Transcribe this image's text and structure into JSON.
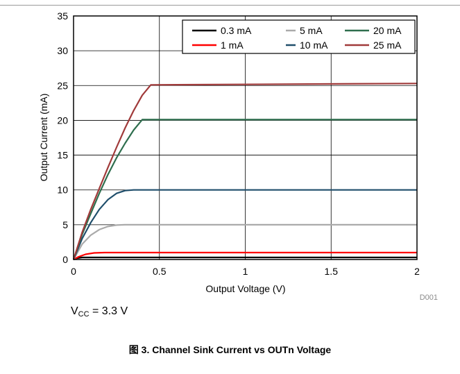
{
  "chart_data": {
    "type": "line",
    "xlabel": "Output Voltage (V)",
    "ylabel": "Output Current (mA)",
    "xlim": [
      0,
      2
    ],
    "ylim": [
      0,
      35
    ],
    "xticks": [
      "0",
      "0.5",
      "1",
      "1.5",
      "2"
    ],
    "yticks": [
      "0",
      "5",
      "10",
      "15",
      "20",
      "25",
      "30",
      "35"
    ],
    "grid": true,
    "legend_position": "top-right",
    "plot_id": "D001",
    "series": [
      {
        "name": "0.3 mA",
        "color": "#000000",
        "x": [
          0,
          0.02,
          0.05,
          0.1,
          2
        ],
        "y": [
          0,
          0.2,
          0.3,
          0.3,
          0.3
        ]
      },
      {
        "name": "1 mA",
        "color": "#ff0000",
        "x": [
          0,
          0.03,
          0.07,
          0.12,
          0.18,
          2
        ],
        "y": [
          0,
          0.4,
          0.75,
          0.95,
          1.0,
          1.0
        ]
      },
      {
        "name": "5 mA",
        "color": "#aaaaaa",
        "x": [
          0,
          0.05,
          0.1,
          0.15,
          0.2,
          0.25,
          0.3,
          2
        ],
        "y": [
          0,
          2.2,
          3.5,
          4.3,
          4.75,
          4.95,
          5.0,
          5.0
        ]
      },
      {
        "name": "10 mA",
        "color": "#1f4e6b",
        "x": [
          0,
          0.05,
          0.1,
          0.15,
          0.2,
          0.25,
          0.3,
          0.35,
          2
        ],
        "y": [
          0,
          3.0,
          5.3,
          7.2,
          8.6,
          9.5,
          9.9,
          10.0,
          10.0
        ]
      },
      {
        "name": "20 mA",
        "color": "#2e6e4e",
        "x": [
          0,
          0.05,
          0.1,
          0.15,
          0.2,
          0.25,
          0.3,
          0.35,
          0.4,
          2
        ],
        "y": [
          0,
          3.6,
          6.6,
          9.5,
          12.2,
          14.6,
          16.7,
          18.6,
          20.1,
          20.1
        ]
      },
      {
        "name": "25 mA",
        "color": "#a03a3a",
        "x": [
          0,
          0.05,
          0.1,
          0.15,
          0.2,
          0.25,
          0.3,
          0.35,
          0.4,
          0.45,
          2
        ],
        "y": [
          0,
          3.9,
          7.2,
          10.2,
          13.2,
          16.1,
          18.9,
          21.4,
          23.6,
          25.1,
          25.3
        ]
      }
    ]
  },
  "condition": {
    "prefix": "V",
    "subscript": "CC",
    "value": " = 3.3 V"
  },
  "caption": "图 3. Channel Sink Current vs OUTn Voltage"
}
